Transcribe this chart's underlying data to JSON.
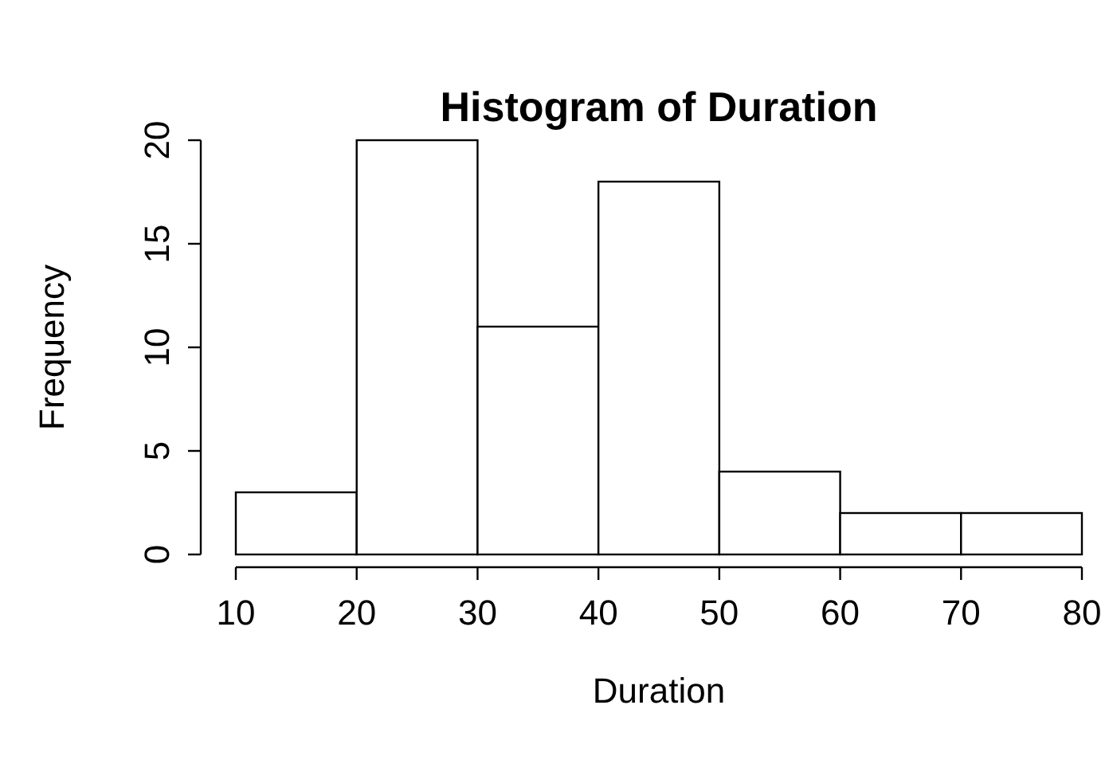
{
  "chart_data": {
    "type": "histogram",
    "title": "Histogram of Duration",
    "xlabel": "Duration",
    "ylabel": "Frequency",
    "bins": [
      10,
      20,
      30,
      40,
      50,
      60,
      70,
      80
    ],
    "values": [
      3,
      20,
      11,
      18,
      4,
      2,
      2
    ],
    "color": "#ffffff",
    "xlim": [
      10,
      80
    ],
    "xticks": [
      10,
      20,
      30,
      40,
      50,
      60,
      70,
      80
    ],
    "ylim": [
      0,
      20
    ],
    "yticks": [
      0,
      5,
      10,
      15,
      20
    ],
    "grid": false
  }
}
